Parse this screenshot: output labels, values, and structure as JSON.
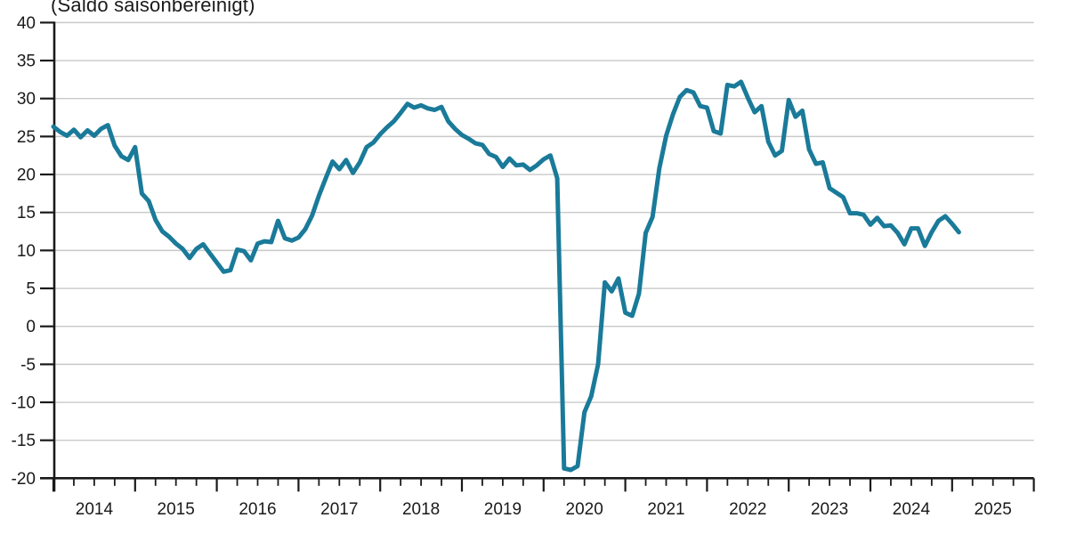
{
  "title": "(Saldo saisonbereinigt)",
  "chart_data": {
    "type": "line",
    "title": "(Saldo saisonbereinigt)",
    "frequency": "monthly",
    "start_year": 2014,
    "start_month": 1,
    "end_year": 2025,
    "end_month": 2,
    "ylim": [
      -20,
      40
    ],
    "ytick_step": 5,
    "ytick_labels": [
      "40",
      "35",
      "30",
      "25",
      "20",
      "15",
      "10",
      "5",
      "0",
      "-5",
      "-10",
      "-15",
      "-20"
    ],
    "year_labels": [
      "2014",
      "2015",
      "2016",
      "2017",
      "2018",
      "2019",
      "2020",
      "2021",
      "2022",
      "2023",
      "2024",
      "2025"
    ],
    "grid": true,
    "legend": "none",
    "line_color": "#1a7a99",
    "grid_color": "#c9c9c9",
    "axis_color": "#1a1a1a",
    "text_color": "#1a1a1a",
    "series": [
      {
        "name": "Saldo saisonbereinigt",
        "values": [
          26.3,
          25.6,
          25.1,
          25.9,
          24.9,
          25.8,
          25.1,
          26.0,
          26.5,
          23.8,
          22.4,
          21.9,
          23.6,
          17.5,
          16.5,
          14.0,
          12.5,
          11.8,
          10.9,
          10.2,
          9.0,
          10.2,
          10.8,
          9.6,
          8.4,
          7.2,
          7.4,
          10.1,
          9.9,
          8.7,
          10.9,
          11.2,
          11.1,
          13.9,
          11.6,
          11.3,
          11.7,
          12.8,
          14.6,
          17.2,
          19.5,
          21.7,
          20.7,
          21.9,
          20.2,
          21.6,
          23.6,
          24.2,
          25.3,
          26.2,
          27.0,
          28.1,
          29.3,
          28.8,
          29.1,
          28.7,
          28.5,
          28.9,
          27.0,
          26.0,
          25.2,
          24.7,
          24.1,
          23.9,
          22.7,
          22.3,
          21.0,
          22.1,
          21.2,
          21.3,
          20.6,
          21.2,
          22.0,
          22.5,
          19.5,
          -18.7,
          -18.9,
          -18.4,
          -11.3,
          -9.2,
          -5.0,
          5.8,
          4.6,
          6.3,
          1.8,
          1.4,
          4.3,
          12.3,
          14.4,
          20.8,
          25.1,
          27.9,
          30.2,
          31.1,
          30.8,
          29.0,
          28.8,
          25.7,
          25.4,
          31.8,
          31.6,
          32.2,
          30.1,
          28.2,
          29.0,
          24.3,
          22.5,
          23.1,
          29.8,
          27.6,
          28.4,
          23.3,
          21.4,
          21.6,
          18.2,
          17.6,
          17.0,
          14.9,
          14.9,
          14.7,
          13.4,
          14.3,
          13.2,
          13.3,
          12.3,
          10.8,
          12.9,
          12.9,
          10.6,
          12.4,
          13.9,
          14.5,
          13.5,
          12.4
        ]
      }
    ]
  }
}
